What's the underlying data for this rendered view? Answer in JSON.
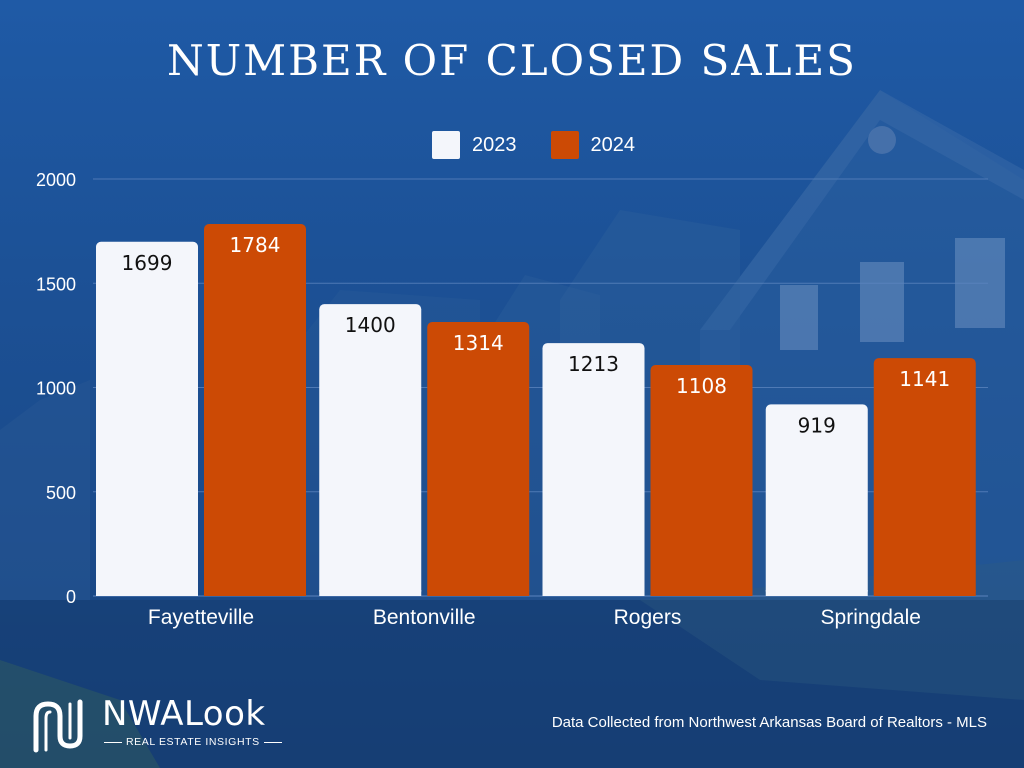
{
  "header": {
    "title": "NUMBER OF CLOSED SALES"
  },
  "colors": {
    "series_2023": "#f4f6fb",
    "series_2024": "#cc4a05",
    "grid": "#5b83bd",
    "text": "#ffffff",
    "bar_label_dark": "#111111"
  },
  "chart_data": {
    "type": "bar",
    "title": "NUMBER OF CLOSED SALES",
    "categories": [
      "Fayetteville",
      "Bentonville",
      "Rogers",
      "Springdale"
    ],
    "series": [
      {
        "name": "2023",
        "values": [
          1699,
          1400,
          1213,
          919
        ]
      },
      {
        "name": "2024",
        "values": [
          1784,
          1314,
          1108,
          1141
        ]
      }
    ],
    "ylim": [
      0,
      2000
    ],
    "yticks": [
      0,
      500,
      1000,
      1500,
      2000
    ],
    "xlabel": "",
    "ylabel": "",
    "grid": true,
    "legend_position": "top"
  },
  "footer": {
    "source": "Data Collected from Northwest Arkansas Board of Realtors - MLS",
    "logo_text": "NWALook",
    "logo_subtext": "REAL ESTATE INSIGHTS"
  }
}
